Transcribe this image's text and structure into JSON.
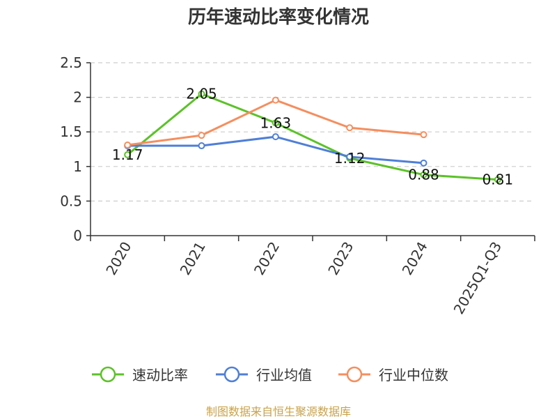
{
  "title": "历年速动比率变化情况",
  "source": "制图数据来自恒生聚源数据库",
  "chart_data": {
    "type": "line",
    "categories": [
      "2020",
      "2021",
      "2022",
      "2023",
      "2024",
      "2025Q1-Q3"
    ],
    "ylim": [
      0,
      2.5
    ],
    "yticks": [
      "0",
      "0.5",
      "1",
      "1.5",
      "2",
      "2.5"
    ],
    "grid": true,
    "legend_position": "bottom",
    "series": [
      {
        "name": "速动比率",
        "color": "#5cc228",
        "values": [
          1.17,
          2.05,
          1.63,
          1.12,
          0.88,
          0.81
        ],
        "labels": [
          "1.17",
          "2.05",
          "1.63",
          "1.12",
          "0.88",
          "0.81"
        ]
      },
      {
        "name": "行业均值",
        "color": "#4f7fd6",
        "values": [
          1.3,
          1.3,
          1.43,
          1.14,
          1.05,
          null
        ]
      },
      {
        "name": "行业中位数",
        "color": "#f58e5e",
        "values": [
          1.31,
          1.45,
          1.96,
          1.56,
          1.46,
          null
        ]
      }
    ]
  }
}
